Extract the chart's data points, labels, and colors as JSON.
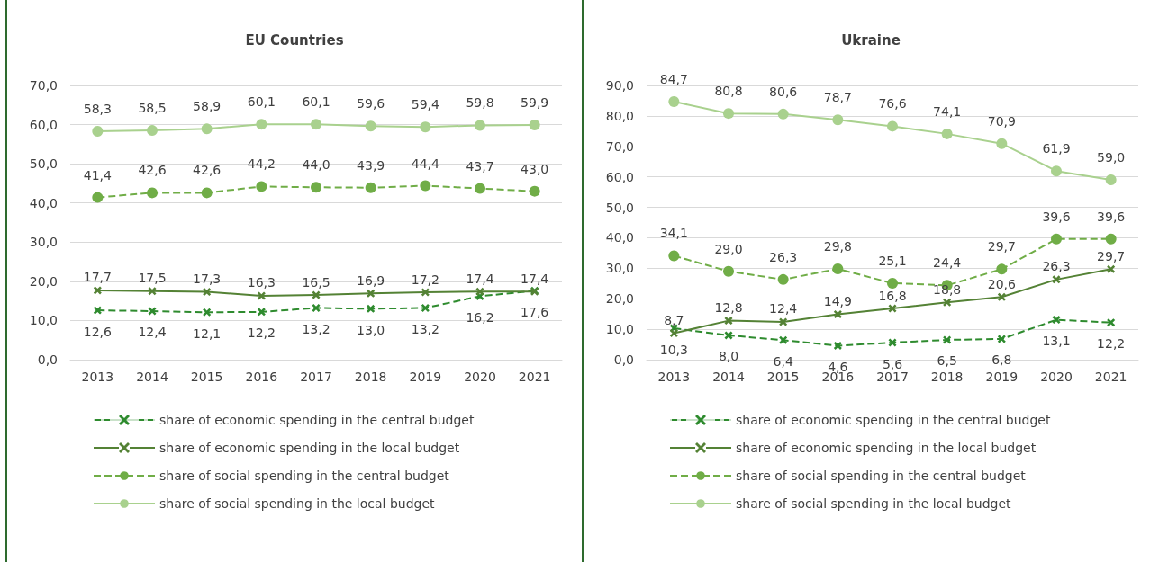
{
  "chart_data": [
    {
      "type": "line",
      "title": "EU Countries",
      "categories": [
        "2013",
        "2014",
        "2015",
        "2016",
        "2017",
        "2018",
        "2019",
        "2020",
        "2021"
      ],
      "ylim": [
        0,
        70
      ],
      "yticks": [
        {
          "value": 0,
          "label": "0,0"
        },
        {
          "value": 10,
          "label": "10,0"
        },
        {
          "value": 20,
          "label": "20,0"
        },
        {
          "value": 30,
          "label": "30,0"
        },
        {
          "value": 40,
          "label": "40,0"
        },
        {
          "value": 50,
          "label": "50,0"
        },
        {
          "value": 60,
          "label": "60,0"
        },
        {
          "value": 70,
          "label": "70,0"
        }
      ],
      "grid": "y",
      "legend": "bottom",
      "series": [
        {
          "name": "share of economic spending in the central budget",
          "color": "#2e8b2e",
          "marker": "cross",
          "line_style": "dashed",
          "values": [
            12.6,
            12.4,
            12.1,
            12.2,
            13.2,
            13.0,
            13.2,
            16.2,
            17.6
          ],
          "value_labels": [
            "12,6",
            "12,4",
            "12,1",
            "12,2",
            "13,2",
            "13,0",
            "13,2",
            "16,2",
            "17,6"
          ]
        },
        {
          "name": "share of economic spending in the local budget",
          "color": "#548235",
          "marker": "cross",
          "line_style": "solid",
          "values": [
            17.7,
            17.5,
            17.3,
            16.3,
            16.5,
            16.9,
            17.2,
            17.4,
            17.4
          ],
          "value_labels": [
            "17,7",
            "17,5",
            "17,3",
            "16,3",
            "16,5",
            "16,9",
            "17,2",
            "17,4",
            "17,4"
          ]
        },
        {
          "name": "share of social spending in the central budget",
          "color": "#70ad47",
          "marker": "circle",
          "line_style": "dashed",
          "values": [
            41.4,
            42.6,
            42.6,
            44.2,
            44.0,
            43.9,
            44.4,
            43.7,
            43.0
          ],
          "value_labels": [
            "41,4",
            "42,6",
            "42,6",
            "44,2",
            "44,0",
            "43,9",
            "44,4",
            "43,7",
            "43,0"
          ]
        },
        {
          "name": "share of social spending in the local budget",
          "color": "#a9d18e",
          "marker": "circle",
          "line_style": "solid",
          "values": [
            58.3,
            58.5,
            58.9,
            60.1,
            60.1,
            59.6,
            59.4,
            59.8,
            59.9
          ],
          "value_labels": [
            "58,3",
            "58,5",
            "58,9",
            "60,1",
            "60,1",
            "59,6",
            "59,4",
            "59,8",
            "59,9"
          ]
        }
      ]
    },
    {
      "type": "line",
      "title": "Ukraine",
      "categories": [
        "2013",
        "2014",
        "2015",
        "2016",
        "2017",
        "2018",
        "2019",
        "2020",
        "2021"
      ],
      "ylim": [
        0,
        90
      ],
      "yticks": [
        {
          "value": 0,
          "label": "0,0"
        },
        {
          "value": 10,
          "label": "10,0"
        },
        {
          "value": 20,
          "label": "20,0"
        },
        {
          "value": 30,
          "label": "30,0"
        },
        {
          "value": 40,
          "label": "40,0"
        },
        {
          "value": 50,
          "label": "50,0"
        },
        {
          "value": 60,
          "label": "60,0"
        },
        {
          "value": 70,
          "label": "70,0"
        },
        {
          "value": 80,
          "label": "80,0"
        },
        {
          "value": 90,
          "label": "90,0"
        }
      ],
      "grid": "y",
      "legend": "bottom",
      "series": [
        {
          "name": "share of economic spending in the central budget",
          "color": "#2e8b2e",
          "marker": "cross",
          "line_style": "dashed",
          "values": [
            10.3,
            8.0,
            6.4,
            4.6,
            5.6,
            6.5,
            6.8,
            13.1,
            12.2
          ],
          "value_labels": [
            "10,3",
            "8,0",
            "6,4",
            "4,6",
            "5,6",
            "6,5",
            "6,8",
            "13,1",
            "12,2"
          ]
        },
        {
          "name": "share of economic spending in the local budget",
          "color": "#548235",
          "marker": "cross",
          "line_style": "solid",
          "values": [
            8.7,
            12.8,
            12.4,
            14.9,
            16.8,
            18.8,
            20.6,
            26.3,
            29.7
          ],
          "value_labels": [
            "8,7",
            "12,8",
            "12,4",
            "14,9",
            "16,8",
            "18,8",
            "20,6",
            "26,3",
            "29,7"
          ]
        },
        {
          "name": "share of social spending in the central budget",
          "color": "#70ad47",
          "marker": "circle",
          "line_style": "dashed",
          "values": [
            34.1,
            29.0,
            26.3,
            29.8,
            25.1,
            24.4,
            29.7,
            39.6,
            39.6
          ],
          "value_labels": [
            "34,1",
            "29,0",
            "26,3",
            "29,8",
            "25,1",
            "24,4",
            "29,7",
            "39,6",
            "39,6"
          ]
        },
        {
          "name": "share of social spending in the local budget",
          "color": "#a9d18e",
          "marker": "circle",
          "line_style": "solid",
          "values": [
            84.7,
            80.8,
            80.6,
            78.7,
            76.6,
            74.1,
            70.9,
            61.9,
            59.0
          ],
          "value_labels": [
            "84,7",
            "80,8",
            "80,6",
            "78,7",
            "76,6",
            "74,1",
            "70,9",
            "61,9",
            "59,0"
          ]
        }
      ]
    }
  ]
}
